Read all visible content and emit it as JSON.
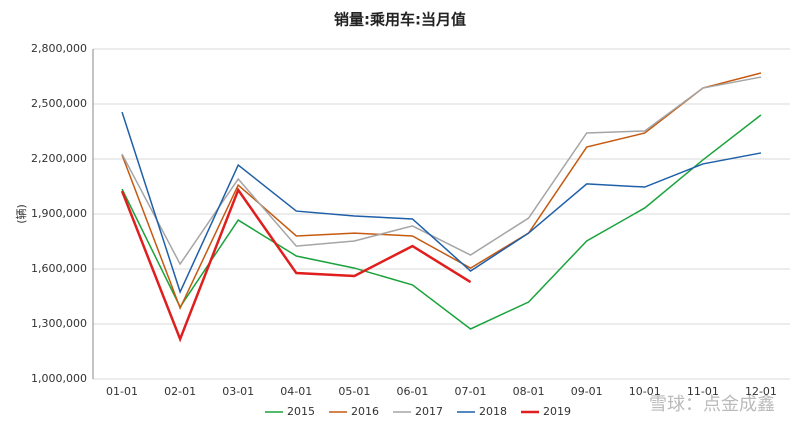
{
  "chart_data": {
    "type": "line",
    "title": "销量:乘用车:当月值",
    "y_label": "(辆)",
    "watermark": "雪球：点金成鑫",
    "categories": [
      "01-01",
      "02-01",
      "03-01",
      "04-01",
      "05-01",
      "06-01",
      "07-01",
      "08-01",
      "09-01",
      "10-01",
      "11-01",
      "12-01"
    ],
    "series": [
      {
        "name": "2015",
        "color": "#1aa33c",
        "values": [
          2036000,
          1393000,
          1867000,
          1671000,
          1605000,
          1513000,
          1273000,
          1420000,
          1753000,
          1933000,
          2195000,
          2440000
        ]
      },
      {
        "name": "2016",
        "color": "#c55a11",
        "values": [
          2222000,
          1387000,
          2058000,
          1780000,
          1796000,
          1780000,
          1605000,
          1796000,
          2265000,
          2342000,
          2587000,
          2669000
        ]
      },
      {
        "name": "2017",
        "color": "#a5a5a5",
        "values": [
          2227000,
          1627000,
          2091000,
          1725000,
          1753000,
          1835000,
          1676000,
          1878000,
          2342000,
          2353000,
          2587000,
          2647000
        ]
      },
      {
        "name": "2018",
        "color": "#1f5fa8",
        "values": [
          2456000,
          1475000,
          2167000,
          1916000,
          1889000,
          1873000,
          1589000,
          1796000,
          2064000,
          2047000,
          2173000,
          2233000
        ]
      },
      {
        "name": "2019",
        "color": "#e01e1e",
        "values": [
          2025000,
          1218000,
          2031000,
          1578000,
          1562000,
          1725000,
          1529000,
          null,
          null,
          null,
          null,
          null
        ]
      }
    ],
    "ylim": [
      1000000,
      2800000
    ],
    "yticks": [
      {
        "value": 1000000,
        "label": "1,000,000"
      },
      {
        "value": 1300000,
        "label": "1,300,000"
      },
      {
        "value": 1600000,
        "label": "1,600,000"
      },
      {
        "value": 1900000,
        "label": "1,900,000"
      },
      {
        "value": 2200000,
        "label": "2,200,000"
      },
      {
        "value": 2500000,
        "label": "2,500,000"
      },
      {
        "value": 2800000,
        "label": "2,800,000"
      }
    ],
    "grid": true,
    "legend": "bottom"
  }
}
